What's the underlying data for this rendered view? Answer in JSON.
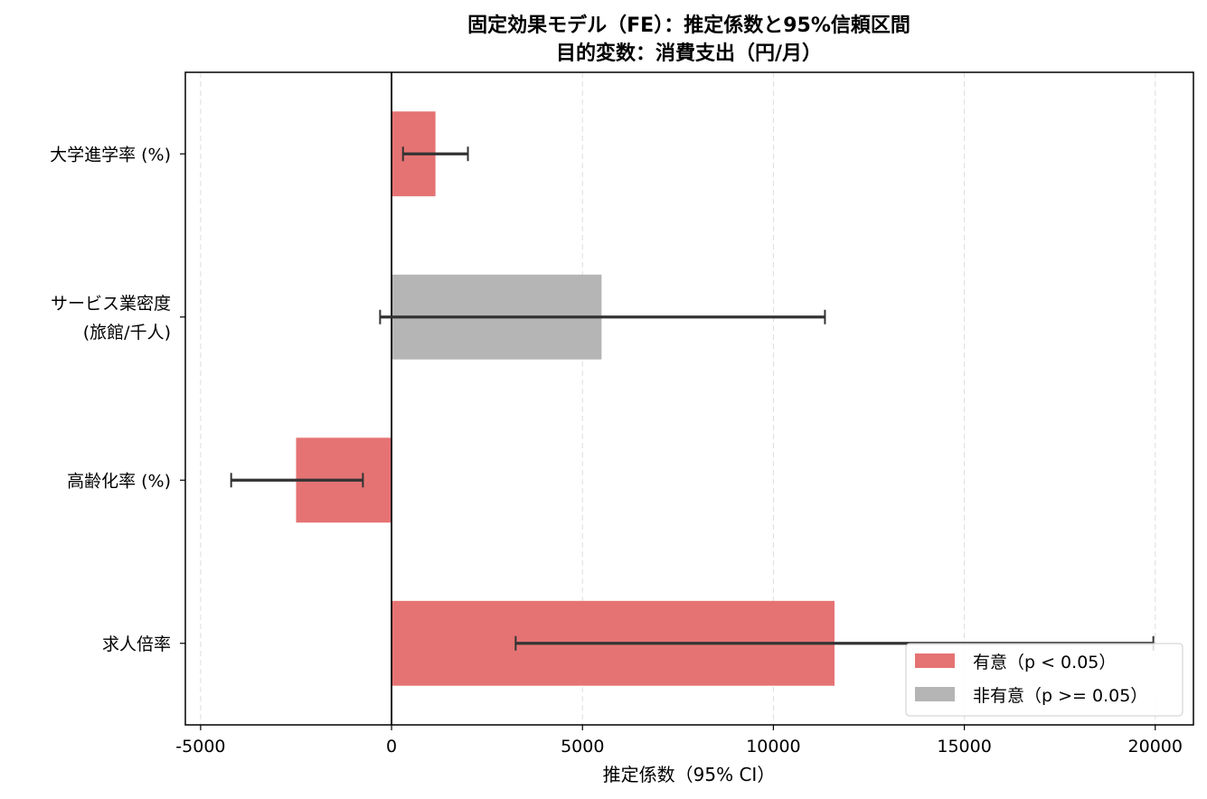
{
  "chart_data": {
    "type": "bar",
    "orientation": "horizontal",
    "title": "固定効果モデル（FE）：推定係数と95%信頼区間",
    "subtitle": "目的変数：消費支出（円/月）",
    "xlabel": "推定係数（95% CI）",
    "ylabel": "",
    "xlim": [
      -5400,
      21000
    ],
    "xticks": [
      -5000,
      0,
      5000,
      10000,
      15000,
      20000
    ],
    "xtick_labels": [
      "-5000",
      "0",
      "5000",
      "10000",
      "15000",
      "20000"
    ],
    "grid": "x-dashed",
    "zero_line": 0,
    "categories": [
      {
        "label_lines": [
          "大学進学率 (%)"
        ]
      },
      {
        "label_lines": [
          "サービス業密度",
          "(旅館/千人)"
        ]
      },
      {
        "label_lines": [
          "高齢化率 (%)"
        ]
      },
      {
        "label_lines": [
          "求人倍率"
        ]
      }
    ],
    "values": [
      1150,
      5500,
      -2500,
      11600
    ],
    "ci_low": [
      300,
      -300,
      -4200,
      3250
    ],
    "ci_high": [
      2000,
      11350,
      -750,
      19950
    ],
    "significant": [
      true,
      false,
      true,
      true
    ],
    "colors": {
      "significant": "#e57373",
      "not_significant": "#b5b5b5",
      "errorbar": "#333333"
    },
    "legend": {
      "position": "lower-right",
      "entries": [
        {
          "label": "有意（p < 0.05）",
          "color": "#e57373"
        },
        {
          "label": "非有意（p >= 0.05）",
          "color": "#b5b5b5"
        }
      ]
    }
  }
}
